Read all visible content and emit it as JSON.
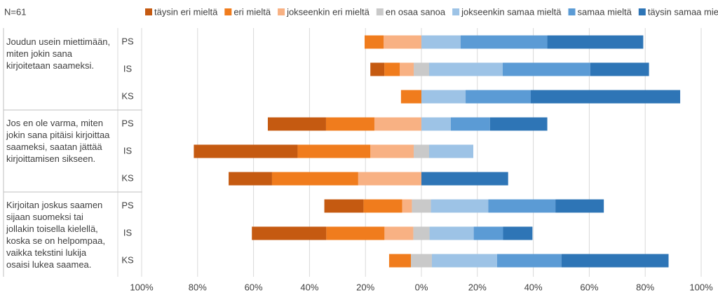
{
  "chart_data": {
    "type": "diverging-stacked-bar",
    "note": "N=61",
    "questions": [
      "Joudun usein miettimään, miten jokin sana kirjoitetaan saameksi.",
      "Jos en ole varma, miten jokin sana pitäisi kirjoittaa saameksi, saatan jättää kirjoittamisen sikseen.",
      "Kirjoitan joskus saamen sijaan suomeksi tai jollakin toisella kielellä, koska se on helpompaa, vaikka tekstini lukija osaisi lukea saamea."
    ],
    "categories": [
      "PS",
      "IS",
      "KS",
      "PS",
      "IS",
      "KS",
      "PS",
      "IS",
      "KS"
    ],
    "series": [
      {
        "name": "täysin eri mieltä",
        "color": "#c55a11",
        "side": "left",
        "values": [
          0,
          5,
          0,
          20.8,
          37.1,
          15.5,
          14,
          26.6,
          0
        ]
      },
      {
        "name": "eri mieltä",
        "color": "#f07c1d",
        "side": "left",
        "values": [
          6.8,
          5.5,
          7.3,
          17.3,
          26,
          30.8,
          13.8,
          20.8,
          7.8
        ]
      },
      {
        "name": "jokseenkin eri mieltä",
        "color": "#f8b183",
        "side": "left",
        "values": [
          13.5,
          5,
          0,
          16.8,
          15.5,
          22.6,
          3.5,
          10.3,
          0
        ]
      },
      {
        "name": "en osaa sanoa",
        "color": "#c9c9c9",
        "side": "center",
        "values": [
          0,
          5.5,
          0,
          0,
          5.5,
          0,
          6.8,
          5.8,
          7.5
        ]
      },
      {
        "name": "jokseenkin samaa mieltä",
        "color": "#9dc3e6",
        "side": "right",
        "values": [
          14,
          26.3,
          15.8,
          10.5,
          15.8,
          0,
          20.5,
          15.8,
          23.3
        ]
      },
      {
        "name": "samaa mieltä",
        "color": "#5b9bd5",
        "side": "right",
        "values": [
          31,
          31.3,
          23.3,
          14,
          0,
          0,
          24,
          10.5,
          23
        ]
      },
      {
        "name": "täysin samaa mieltä",
        "color": "#2e75b6",
        "side": "right",
        "values": [
          34.3,
          21,
          53.4,
          20.5,
          0,
          31,
          17.3,
          10.5,
          38.3
        ]
      }
    ],
    "xlim": [
      -100,
      100
    ],
    "xticks": [
      {
        "value": -100,
        "label": "100%"
      },
      {
        "value": -80,
        "label": "80%"
      },
      {
        "value": -60,
        "label": "60%"
      },
      {
        "value": -40,
        "label": "40%"
      },
      {
        "value": -20,
        "label": "20%"
      },
      {
        "value": 0,
        "label": "0%"
      },
      {
        "value": 20,
        "label": "20%"
      },
      {
        "value": 40,
        "label": "40%"
      },
      {
        "value": 60,
        "label": "60%"
      },
      {
        "value": 80,
        "label": "80%"
      },
      {
        "value": 100,
        "label": "100%"
      }
    ],
    "grid": true
  }
}
